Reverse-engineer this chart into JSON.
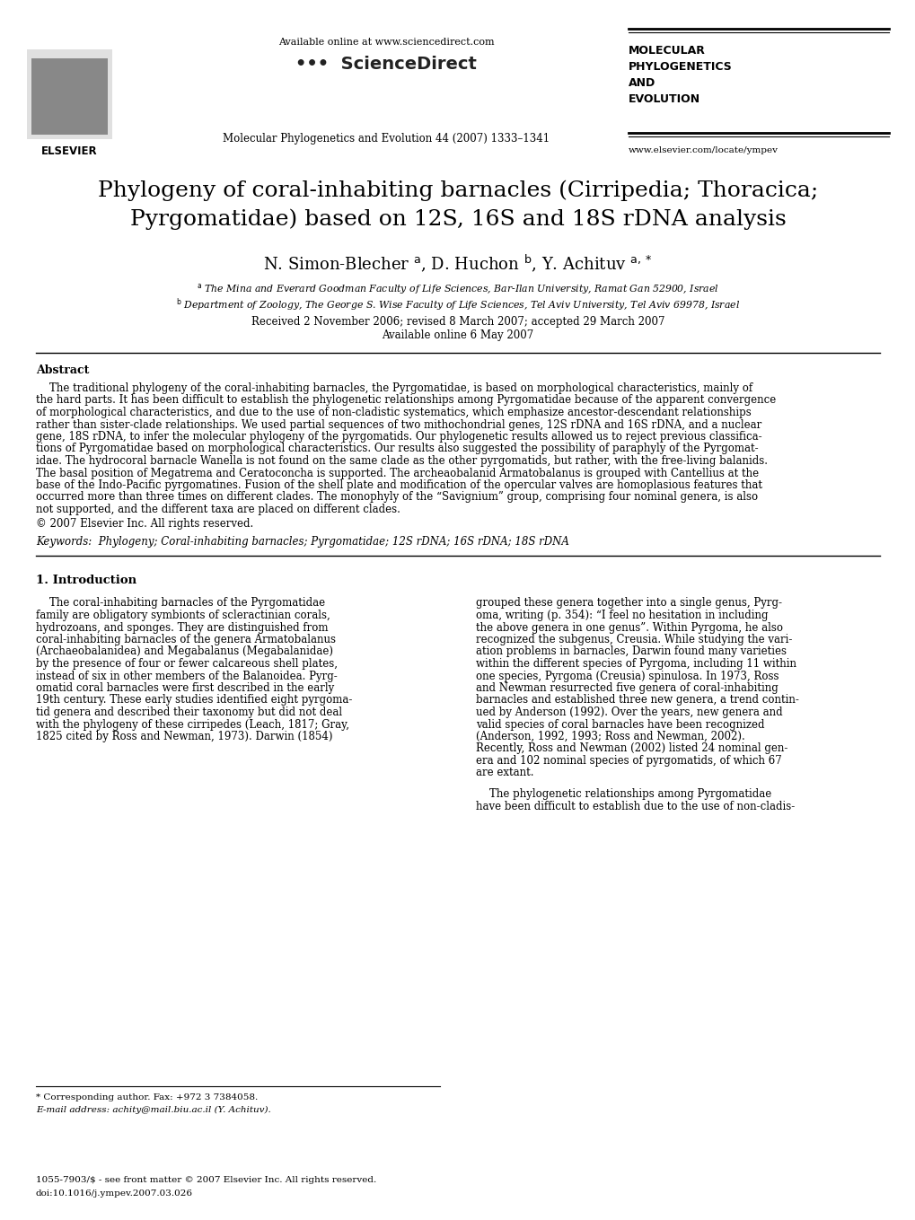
{
  "page_width": 10.2,
  "page_height": 13.59,
  "bg_color": "#ffffff",
  "available_online_text": "Available online at www.sciencedirect.com",
  "sciencedirect_text": "•••  ScienceDirect",
  "journal_name": "Molecular Phylogenetics and Evolution 44 (2007) 1333–1341",
  "journal_abbrev": "MOLECULAR\nPHYLOGENETICS\nAND\nEVOLUTION",
  "website": "www.elsevier.com/locate/ympev",
  "elsevier_text": "ELSEVIER",
  "title_line1": "Phylogeny of coral-inhabiting barnacles (Cirripedia; Thoracica;",
  "title_line2": "Pyrgomatidae) based on 12S, 16S and 18S rDNA analysis",
  "authors_line": "N. Simon-Blecher $^{\\mathrm{a}}$, D. Huchon $^{\\mathrm{b}}$, Y. Achituv $^{\\mathrm{a,*}}$",
  "affiliation_a": "$^{\\mathrm{a}}$ The Mina and Everard Goodman Faculty of Life Sciences, Bar-Ilan University, Ramat Gan 52900, Israel",
  "affiliation_b": "$^{\\mathrm{b}}$ Department of Zoology, The George S. Wise Faculty of Life Sciences, Tel Aviv University, Tel Aviv 69978, Israel",
  "received_text": "Received 2 November 2006; revised 8 March 2007; accepted 29 March 2007",
  "available_online2": "Available online 6 May 2007",
  "abstract_title": "Abstract",
  "abstract_lines": [
    "    The traditional phylogeny of the coral-inhabiting barnacles, the Pyrgomatidae, is based on morphological characteristics, mainly of",
    "the hard parts. It has been difficult to establish the phylogenetic relationships among Pyrgomatidae because of the apparent convergence",
    "of morphological characteristics, and due to the use of non-cladistic systematics, which emphasize ancestor-descendant relationships",
    "rather than sister-clade relationships. We used partial sequences of two mithochondrial genes, 12S rDNA and 16S rDNA, and a nuclear",
    "gene, 18S rDNA, to infer the molecular phylogeny of the pyrgomatids. Our phylogenetic results allowed us to reject previous classifica-",
    "tions of Pyrgomatidae based on morphological characteristics. Our results also suggested the possibility of paraphyly of the Pyrgomat-",
    "idae. The hydrocoral barnacle Wanella is not found on the same clade as the other pyrgomatids, but rather, with the free-living balanids.",
    "The basal position of Megatrema and Ceratoconcha is supported. The archeaobalanid Armatobalanus is grouped with Cantellius at the",
    "base of the Indo-Pacific pyrgomatines. Fusion of the shell plate and modification of the opercular valves are homoplasious features that",
    "occurred more than three times on different clades. The monophyly of the “Savignium” group, comprising four nominal genera, is also",
    "not supported, and the different taxa are placed on different clades."
  ],
  "copyright": "© 2007 Elsevier Inc. All rights reserved.",
  "keywords": "Keywords:  Phylogeny; Coral-inhabiting barnacles; Pyrgomatidae; 12S rDNA; 16S rDNA; 18S rDNA",
  "intro_title": "1. Introduction",
  "intro_left_lines": [
    "    The coral-inhabiting barnacles of the Pyrgomatidae",
    "family are obligatory symbionts of scleractinian corals,",
    "hydrozoans, and sponges. They are distinguished from",
    "coral-inhabiting barnacles of the genera Armatobalanus",
    "(Archaeobalanidea) and Megabalanus (Megabalanidae)",
    "by the presence of four or fewer calcareous shell plates,",
    "instead of six in other members of the Balanoidea. Pyrg-",
    "omatid coral barnacles were first described in the early",
    "19th century. These early studies identified eight pyrgoma-",
    "tid genera and described their taxonomy but did not deal",
    "with the phylogeny of these cirripedes (Leach, 1817; Gray,",
    "1825 cited by Ross and Newman, 1973). Darwin (1854)"
  ],
  "intro_right_lines": [
    "grouped these genera together into a single genus, Pyrg-",
    "oma, writing (p. 354): “I feel no hesitation in including",
    "the above genera in one genus”. Within Pyrgoma, he also",
    "recognized the subgenus, Creusia. While studying the vari-",
    "ation problems in barnacles, Darwin found many varieties",
    "within the different species of Pyrgoma, including 11 within",
    "one species, Pyrgoma (Creusia) spinulosa. In 1973, Ross",
    "and Newman resurrected five genera of coral-inhabiting",
    "barnacles and established three new genera, a trend contin-",
    "ued by Anderson (1992). Over the years, new genera and",
    "valid species of coral barnacles have been recognized",
    "(Anderson, 1992, 1993; Ross and Newman, 2002).",
    "Recently, Ross and Newman (2002) listed 24 nominal gen-",
    "era and 102 nominal species of pyrgomatids, of which 67",
    "are extant."
  ],
  "intro_right_last": [
    "    The phylogenetic relationships among Pyrgomatidae",
    "have been difficult to establish due to the use of non-cladis-"
  ],
  "footnote_star": "* Corresponding author. Fax: +972 3 7384058.",
  "footnote_email": "E-mail address: achity@mail.biu.ac.il (Y. Achituv).",
  "footer_issn": "1055-7903/$ - see front matter © 2007 Elsevier Inc. All rights reserved.",
  "footer_doi": "doi:10.1016/j.ympev.2007.03.026"
}
